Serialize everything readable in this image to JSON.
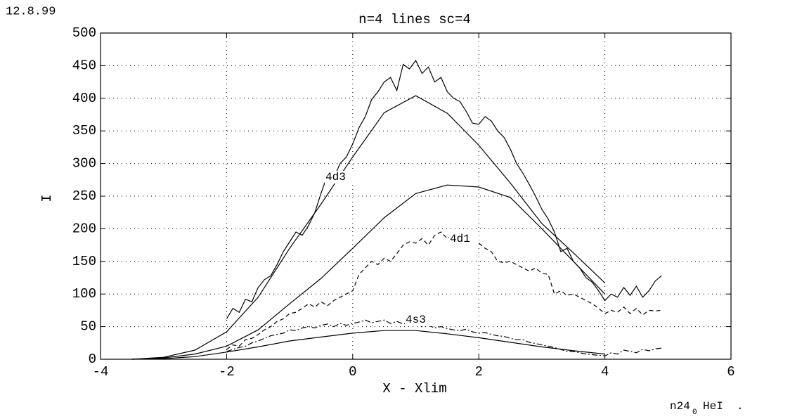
{
  "chart_data": {
    "type": "line",
    "title": "n=4 lines  sc=4",
    "date": "12.8.99",
    "xlabel": "X - Xlim",
    "ylabel": "I",
    "footer": {
      "name": "n24",
      "subscript": "0",
      "rest": "HeI  ."
    },
    "annotations": [
      "4d3",
      "4d1",
      "4s3"
    ],
    "xlim": [
      -4,
      6
    ],
    "xticks": [
      -4,
      -2,
      0,
      2,
      4,
      6
    ],
    "ylim": [
      0,
      500
    ],
    "yticks": [
      0,
      50,
      100,
      150,
      200,
      250,
      300,
      350,
      400,
      450,
      500
    ],
    "grid": true,
    "series": [
      {
        "color": "#000000",
        "dash": "solid",
        "x": [
          -3.5,
          -3,
          -2.5,
          -2,
          -1.5,
          -1,
          -0.5,
          0,
          0.5,
          1,
          1.5,
          2,
          2.5,
          3,
          3.5,
          4
        ],
        "values": [
          0,
          3,
          14,
          42,
          95,
          170,
          238,
          310,
          378,
          404,
          377,
          328,
          270,
          208,
          163,
          117
        ]
      },
      {
        "color": "#000000",
        "dash": "solid",
        "x": [
          -3.5,
          -3,
          -2.5,
          -2,
          -1.5,
          -1,
          -0.5,
          0,
          0.5,
          1,
          1.5,
          2,
          2.5,
          3,
          3.5,
          4
        ],
        "values": [
          0,
          2,
          8,
          20,
          45,
          85,
          124,
          170,
          217,
          254,
          267,
          264,
          248,
          200,
          150,
          100
        ]
      },
      {
        "color": "#000000",
        "dash": "solid",
        "x": [
          -3.5,
          -3,
          -2.5,
          -2,
          -1.5,
          -1,
          -0.5,
          0,
          0.5,
          1,
          1.5,
          2,
          2.5,
          3,
          3.5,
          4
        ],
        "values": [
          0,
          1,
          4,
          11,
          19,
          28,
          34,
          40,
          44,
          44,
          39,
          33,
          26,
          19,
          13,
          8
        ]
      },
      {
        "color": "#000000",
        "dash": "solid",
        "x": [
          -2,
          -1.9,
          -1.8,
          -1.7,
          -1.6,
          -1.5,
          -1.4,
          -1.3,
          -1.2,
          -1.1,
          -1,
          -0.9,
          -0.8,
          -0.7,
          -0.6,
          -0.5,
          -0.4,
          -0.3,
          -0.2,
          -0.1,
          0,
          0.1,
          0.2,
          0.3,
          0.4,
          0.5,
          0.6,
          0.7,
          0.8,
          0.9,
          1,
          1.1,
          1.2,
          1.3,
          1.4,
          1.5,
          1.6,
          1.7,
          1.8,
          1.9,
          2,
          2.1,
          2.2,
          2.3,
          2.4,
          2.5,
          2.6,
          2.7,
          2.8,
          2.9,
          3,
          3.1,
          3.2,
          3.3,
          3.4,
          3.5,
          3.6,
          3.7,
          3.8,
          3.9,
          4,
          4.1,
          4.2,
          4.3,
          4.4,
          4.5,
          4.6,
          4.7,
          4.8,
          4.9
        ],
        "values": [
          62,
          78,
          72,
          92,
          88,
          110,
          122,
          128,
          145,
          165,
          180,
          195,
          190,
          205,
          225,
          255,
          282,
          278,
          300,
          310,
          330,
          355,
          372,
          398,
          410,
          425,
          432,
          412,
          452,
          445,
          458,
          438,
          448,
          425,
          432,
          410,
          400,
          395,
          380,
          362,
          360,
          372,
          365,
          350,
          340,
          322,
          300,
          285,
          268,
          250,
          230,
          215,
          195,
          165,
          170,
          150,
          140,
          125,
          118,
          105,
          90,
          100,
          95,
          110,
          98,
          112,
          95,
          105,
          120,
          128
        ]
      },
      {
        "color": "#000000",
        "dash": "dashed",
        "x": [
          -2,
          -1.9,
          -1.8,
          -1.7,
          -1.6,
          -1.5,
          -1.4,
          -1.3,
          -1.2,
          -1.1,
          -1,
          -0.9,
          -0.8,
          -0.7,
          -0.6,
          -0.5,
          -0.4,
          -0.3,
          -0.2,
          -0.1,
          0,
          0.1,
          0.2,
          0.3,
          0.4,
          0.5,
          0.6,
          0.7,
          0.8,
          0.9,
          1,
          1.1,
          1.2,
          1.3,
          1.4,
          1.5,
          1.6,
          1.7,
          1.8,
          1.9,
          2,
          2.1,
          2.2,
          2.3,
          2.4,
          2.5,
          2.6,
          2.7,
          2.8,
          2.9,
          3,
          3.1,
          3.2,
          3.3,
          3.4,
          3.5,
          3.6,
          3.7,
          3.8,
          3.9,
          4,
          4.1,
          4.2,
          4.3,
          4.4,
          4.5,
          4.6,
          4.7,
          4.8,
          4.9
        ],
        "values": [
          15,
          22,
          20,
          30,
          32,
          38,
          45,
          50,
          58,
          62,
          70,
          72,
          78,
          85,
          80,
          88,
          82,
          90,
          95,
          100,
          105,
          130,
          140,
          150,
          145,
          155,
          150,
          162,
          175,
          180,
          178,
          185,
          175,
          190,
          195,
          185,
          190,
          182,
          175,
          180,
          178,
          170,
          165,
          150,
          148,
          150,
          145,
          140,
          135,
          140,
          132,
          130,
          100,
          105,
          98,
          100,
          95,
          90,
          85,
          78,
          70,
          75,
          72,
          80,
          70,
          78,
          68,
          75,
          74,
          75
        ]
      },
      {
        "color": "#000000",
        "dash": "dashdot",
        "x": [
          -2,
          -1.9,
          -1.8,
          -1.7,
          -1.6,
          -1.5,
          -1.4,
          -1.3,
          -1.2,
          -1.1,
          -1,
          -0.9,
          -0.8,
          -0.7,
          -0.6,
          -0.5,
          -0.4,
          -0.3,
          -0.2,
          -0.1,
          0,
          0.1,
          0.2,
          0.3,
          0.4,
          0.5,
          0.6,
          0.7,
          0.8,
          0.9,
          1,
          1.1,
          1.2,
          1.3,
          1.4,
          1.5,
          1.6,
          1.7,
          1.8,
          1.9,
          2,
          2.1,
          2.2,
          2.3,
          2.4,
          2.5,
          2.6,
          2.7,
          2.8,
          2.9,
          3,
          3.1,
          3.2,
          3.3,
          3.4,
          3.5,
          3.6,
          3.7,
          3.8,
          3.9,
          4,
          4.1,
          4.2,
          4.3,
          4.4,
          4.5,
          4.6,
          4.7,
          4.8,
          4.9
        ],
        "values": [
          12,
          15,
          18,
          20,
          25,
          28,
          32,
          36,
          38,
          40,
          45,
          44,
          48,
          50,
          48,
          52,
          54,
          50,
          55,
          52,
          55,
          57,
          60,
          56,
          58,
          60,
          55,
          58,
          54,
          56,
          58,
          50,
          52,
          48,
          50,
          47,
          45,
          44,
          46,
          42,
          40,
          41,
          38,
          36,
          35,
          32,
          30,
          30,
          26,
          24,
          22,
          20,
          18,
          15,
          12,
          12,
          10,
          8,
          7,
          6,
          5,
          10,
          8,
          14,
          12,
          10,
          15,
          13,
          16,
          17
        ]
      }
    ]
  }
}
